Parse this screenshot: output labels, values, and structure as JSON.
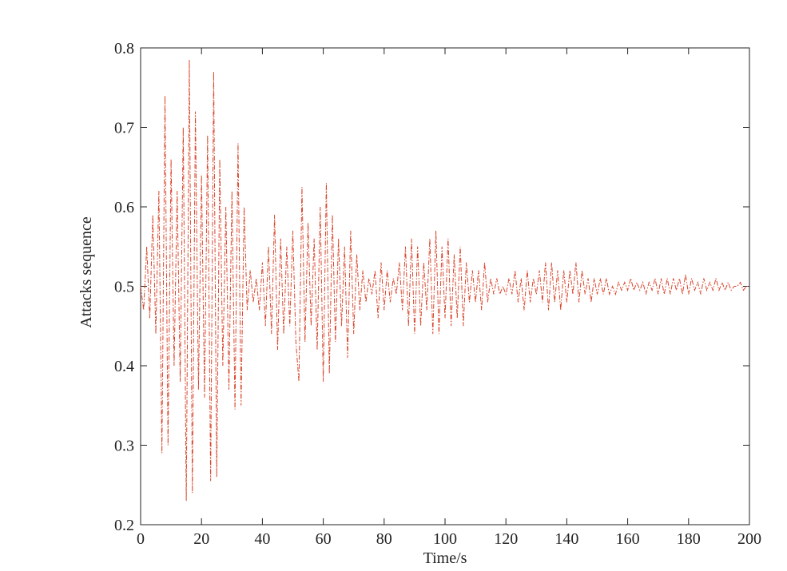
{
  "chart_data": {
    "type": "line",
    "x_label": "Time/s",
    "y_label": "Attacks sequence",
    "xlim": [
      0,
      200
    ],
    "xticks": [
      0,
      20,
      40,
      60,
      80,
      100,
      120,
      140,
      160,
      180,
      200
    ],
    "ylim": [
      0.2,
      0.8
    ],
    "yticks": [
      0.2,
      0.3,
      0.4,
      0.5,
      0.6,
      0.7,
      0.8
    ],
    "grid": false,
    "x": [
      0,
      1,
      2,
      3,
      4,
      5,
      6,
      7,
      8,
      9,
      10,
      11,
      12,
      13,
      14,
      15,
      16,
      17,
      18,
      19,
      20,
      21,
      22,
      23,
      24,
      25,
      26,
      27,
      28,
      29,
      30,
      31,
      32,
      33,
      34,
      35,
      36,
      37,
      38,
      39,
      40,
      41,
      42,
      43,
      44,
      45,
      46,
      47,
      48,
      49,
      50,
      51,
      52,
      53,
      54,
      55,
      56,
      57,
      58,
      59,
      60,
      61,
      62,
      63,
      64,
      65,
      66,
      67,
      68,
      69,
      70,
      71,
      72,
      73,
      74,
      75,
      76,
      77,
      78,
      79,
      80,
      81,
      82,
      83,
      84,
      85,
      86,
      87,
      88,
      89,
      90,
      91,
      92,
      93,
      94,
      95,
      96,
      97,
      98,
      99,
      100,
      101,
      102,
      103,
      104,
      105,
      106,
      107,
      108,
      109,
      110,
      111,
      112,
      113,
      114,
      115,
      116,
      117,
      118,
      119,
      120,
      121,
      122,
      123,
      124,
      125,
      126,
      127,
      128,
      129,
      130,
      131,
      132,
      133,
      134,
      135,
      136,
      137,
      138,
      139,
      140,
      141,
      142,
      143,
      144,
      145,
      146,
      147,
      148,
      149,
      150,
      151,
      152,
      153,
      154,
      155,
      156,
      157,
      158,
      159,
      160,
      161,
      162,
      163,
      164,
      165,
      166,
      167,
      168,
      169,
      170,
      171,
      172,
      173,
      174,
      175,
      176,
      177,
      178,
      179,
      180,
      181,
      182,
      183,
      184,
      185,
      186,
      187,
      188,
      189,
      190,
      191,
      192,
      193,
      194,
      195,
      196,
      197,
      198,
      199,
      200
    ],
    "series": [
      {
        "color": "#d9462c",
        "values": [
          0.5,
          0.47,
          0.55,
          0.46,
          0.59,
          0.44,
          0.62,
          0.29,
          0.74,
          0.3,
          0.66,
          0.4,
          0.62,
          0.38,
          0.7,
          0.23,
          0.785,
          0.24,
          0.72,
          0.37,
          0.64,
          0.36,
          0.69,
          0.255,
          0.77,
          0.26,
          0.66,
          0.4,
          0.6,
          0.37,
          0.62,
          0.345,
          0.68,
          0.35,
          0.6,
          0.47,
          0.52,
          0.48,
          0.51,
          0.47,
          0.53,
          0.45,
          0.55,
          0.44,
          0.59,
          0.42,
          0.56,
          0.44,
          0.55,
          0.45,
          0.57,
          0.43,
          0.38,
          0.625,
          0.43,
          0.58,
          0.45,
          0.56,
          0.42,
          0.6,
          0.38,
          0.63,
          0.39,
          0.59,
          0.43,
          0.56,
          0.45,
          0.55,
          0.41,
          0.57,
          0.44,
          0.54,
          0.47,
          0.52,
          0.48,
          0.51,
          0.49,
          0.52,
          0.46,
          0.53,
          0.47,
          0.52,
          0.48,
          0.51,
          0.49,
          0.53,
          0.47,
          0.55,
          0.45,
          0.56,
          0.44,
          0.55,
          0.45,
          0.53,
          0.47,
          0.56,
          0.44,
          0.57,
          0.44,
          0.55,
          0.46,
          0.56,
          0.45,
          0.54,
          0.46,
          0.55,
          0.45,
          0.53,
          0.48,
          0.52,
          0.48,
          0.52,
          0.47,
          0.53,
          0.48,
          0.51,
          0.49,
          0.51,
          0.49,
          0.5,
          0.49,
          0.51,
          0.49,
          0.52,
          0.48,
          0.51,
          0.47,
          0.52,
          0.48,
          0.51,
          0.49,
          0.52,
          0.48,
          0.53,
          0.47,
          0.53,
          0.48,
          0.52,
          0.47,
          0.52,
          0.48,
          0.52,
          0.49,
          0.53,
          0.48,
          0.52,
          0.49,
          0.51,
          0.48,
          0.51,
          0.49,
          0.51,
          0.49,
          0.51,
          0.49,
          0.5,
          0.49,
          0.505,
          0.495,
          0.505,
          0.495,
          0.51,
          0.495,
          0.505,
          0.495,
          0.505,
          0.49,
          0.505,
          0.495,
          0.51,
          0.49,
          0.51,
          0.49,
          0.51,
          0.49,
          0.51,
          0.495,
          0.51,
          0.49,
          0.515,
          0.49,
          0.51,
          0.495,
          0.505,
          0.49,
          0.51,
          0.495,
          0.505,
          0.495,
          0.51,
          0.495,
          0.505,
          0.495,
          0.505,
          0.495,
          0.5,
          0.5,
          0.505,
          0.495,
          0.5,
          0.5
        ]
      }
    ]
  }
}
